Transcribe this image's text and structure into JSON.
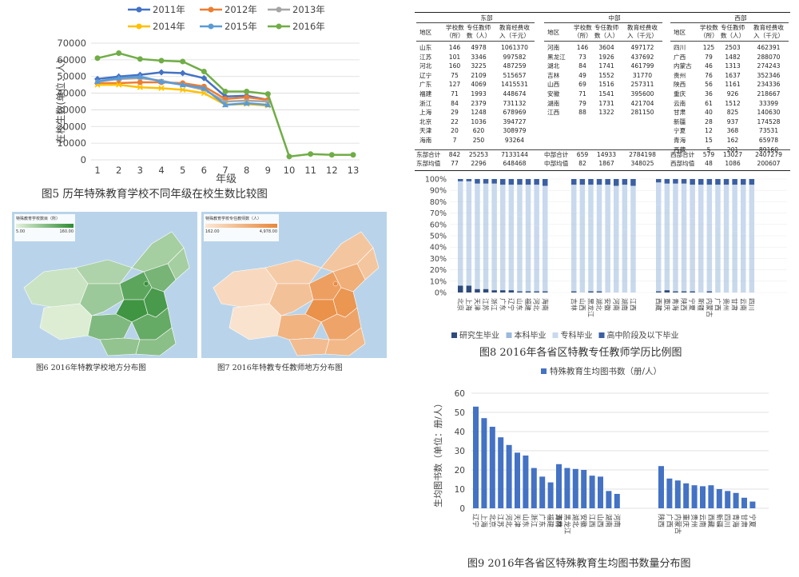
{
  "fig5": {
    "caption": "图5 历年特殊教育学校不同年级在校生数比较图",
    "ylabel": "在校生数(单位：人)",
    "xlabel": "年级",
    "chart_data": {
      "type": "line",
      "title": "",
      "xlabel": "年级",
      "ylabel": "在校生数(单位：人)",
      "ylim": [
        0,
        70000
      ],
      "yticks": [
        0,
        10000,
        20000,
        30000,
        40000,
        50000,
        60000,
        70000
      ],
      "x": [
        1,
        2,
        3,
        4,
        5,
        6,
        7,
        8,
        9,
        10,
        11,
        12,
        13
      ],
      "legend_position": "top",
      "series": [
        {
          "name": "2011年",
          "color": "#4472C4",
          "values": [
            48500,
            50000,
            51000,
            52500,
            52000,
            49000,
            38000,
            38500,
            36000,
            null,
            null,
            null,
            null
          ]
        },
        {
          "name": "2012年",
          "color": "#ED7D31",
          "values": [
            46000,
            46000,
            46500,
            46500,
            46000,
            44000,
            36500,
            37500,
            36000,
            null,
            null,
            null,
            null
          ]
        },
        {
          "name": "2013年",
          "color": "#A5A5A5",
          "values": [
            47000,
            48500,
            49000,
            47500,
            45000,
            42000,
            35000,
            35500,
            35000,
            null,
            null,
            null,
            null
          ]
        },
        {
          "name": "2014年",
          "color": "#FFC000",
          "values": [
            45000,
            45000,
            43500,
            43000,
            42000,
            40000,
            33000,
            33500,
            32500,
            null,
            null,
            null,
            null
          ]
        },
        {
          "name": "2015年",
          "color": "#5B9BD5",
          "values": [
            47000,
            49000,
            50000,
            47000,
            45000,
            43000,
            33000,
            34000,
            33000,
            null,
            null,
            null,
            null
          ]
        },
        {
          "name": "2016年",
          "color": "#70AD47",
          "values": [
            61000,
            64000,
            60500,
            59500,
            59000,
            53000,
            41000,
            41000,
            39500,
            2000,
            3500,
            3000,
            3000
          ]
        }
      ]
    }
  },
  "fig6": {
    "caption": "图6 2016年特教学校地方分布图",
    "legend_title": "特殊教育学校数目（所）",
    "legend_min": "5.00",
    "legend_max": "160.00",
    "color_low": "#e5f2dd",
    "color_high": "#2e8b32"
  },
  "fig7": {
    "caption": "图7 2016年特教专任教师地方分布图",
    "legend_title": "特殊教育学校专任教师数（人）",
    "legend_min": "162.00",
    "legend_max": "4,978.00",
    "color_low": "#fbe8d6",
    "color_high": "#e8873a"
  },
  "table": {
    "region_headers": [
      "东部",
      "中部",
      "西部"
    ],
    "col_headers": [
      "地区",
      "学校数（所）",
      "专任教师数（人）",
      "教育经费收入（千元）"
    ],
    "east": [
      [
        "山东",
        "146",
        "4978",
        "1061370"
      ],
      [
        "江苏",
        "101",
        "3346",
        "997582"
      ],
      [
        "河北",
        "160",
        "3225",
        "487259"
      ],
      [
        "辽宁",
        "75",
        "2109",
        "515657"
      ],
      [
        "广东",
        "127",
        "4069",
        "1415531"
      ],
      [
        "福建",
        "71",
        "1993",
        "448674"
      ],
      [
        "浙江",
        "84",
        "2379",
        "731132"
      ],
      [
        "上海",
        "29",
        "1248",
        "678969"
      ],
      [
        "北京",
        "22",
        "1036",
        "394727"
      ],
      [
        "天津",
        "20",
        "620",
        "308979"
      ],
      [
        "海南",
        "7",
        "250",
        "93264"
      ]
    ],
    "central": [
      [
        "河南",
        "146",
        "3604",
        "497172"
      ],
      [
        "黑龙江",
        "73",
        "1926",
        "437692"
      ],
      [
        "湖北",
        "84",
        "1741",
        "461799"
      ],
      [
        "吉林",
        "49",
        "1552",
        "31770"
      ],
      [
        "山西",
        "69",
        "1516",
        "257311"
      ],
      [
        "安徽",
        "71",
        "1541",
        "395600"
      ],
      [
        "湖南",
        "79",
        "1731",
        "421704"
      ],
      [
        "江西",
        "88",
        "1322",
        "281150"
      ]
    ],
    "west": [
      [
        "四川",
        "125",
        "2503",
        "462391"
      ],
      [
        "广西",
        "79",
        "1482",
        "288070"
      ],
      [
        "内蒙古",
        "46",
        "1313",
        "274243"
      ],
      [
        "贵州",
        "76",
        "1637",
        "352346"
      ],
      [
        "陕西",
        "56",
        "1161",
        "234336"
      ],
      [
        "重庆",
        "36",
        "926",
        "218667"
      ],
      [
        "云南",
        "61",
        "1512",
        "33399"
      ],
      [
        "甘肃",
        "40",
        "825",
        "140630"
      ],
      [
        "新疆",
        "28",
        "937",
        "174528"
      ],
      [
        "宁夏",
        "12",
        "368",
        "73531"
      ],
      [
        "青海",
        "15",
        "162",
        "65978"
      ],
      [
        "西藏",
        "5",
        "201",
        "89160"
      ]
    ],
    "totals": [
      [
        "东部合计",
        "842",
        "25253",
        "7133144",
        "中部合计",
        "659",
        "14933",
        "2784198",
        "西部合计",
        "579",
        "13027",
        "2407279"
      ],
      [
        "东部均值",
        "77",
        "2296",
        "648468",
        "中部均值",
        "82",
        "1867",
        "348025",
        "西部均值",
        "48",
        "1086",
        "200607"
      ]
    ]
  },
  "fig8": {
    "caption": "图8 2016年各省区特教专任教师学历比例图",
    "chart_data": {
      "type": "bar",
      "stacked": true,
      "percent": true,
      "ylim": [
        0,
        100
      ],
      "yticks": [
        "0%",
        "10%",
        "20%",
        "30%",
        "40%",
        "50%",
        "60%",
        "70%",
        "80%",
        "90%",
        "100%"
      ],
      "categories": [
        "北京",
        "上海",
        "天津",
        "江苏",
        "浙江",
        "广东",
        "辽宁",
        "山东",
        "福建",
        "河北",
        "海南",
        "吉林",
        "山西",
        "黑龙江",
        "湖北",
        "安徽",
        "河南",
        "湖南",
        "江西",
        "西藏",
        "重庆",
        "青海",
        "陕西",
        "宁夏",
        "新疆",
        "内蒙古",
        "广西",
        "贵州",
        "甘肃",
        "云南",
        "四川"
      ],
      "legend_position": "bottom",
      "series": [
        {
          "name": "研究生毕业",
          "color": "#2f4b7c",
          "values": [
            6,
            6,
            3,
            3,
            2,
            2,
            2,
            1,
            1,
            1,
            1,
            1,
            0,
            1,
            1,
            0,
            0,
            0,
            0,
            1,
            2,
            1,
            1,
            1,
            0,
            1,
            0,
            0,
            0,
            0,
            0
          ]
        },
        {
          "name": "本科毕业",
          "color": "#9cb9dc",
          "values": [
            82,
            82,
            77,
            72,
            68,
            67,
            66,
            66,
            62,
            58,
            45,
            70,
            68,
            64,
            62,
            60,
            56,
            55,
            52,
            76,
            72,
            70,
            68,
            64,
            62,
            60,
            58,
            56,
            54,
            52,
            50
          ]
        },
        {
          "name": "专科毕业",
          "color": "#c9d9ee",
          "values": [
            10,
            10,
            16,
            21,
            26,
            26,
            27,
            28,
            32,
            36,
            48,
            24,
            27,
            30,
            32,
            35,
            38,
            40,
            42,
            20,
            22,
            25,
            27,
            30,
            33,
            34,
            37,
            39,
            41,
            43,
            45
          ]
        },
        {
          "name": "高中阶段及以下毕业",
          "color": "#3b5fa1",
          "values": [
            2,
            2,
            4,
            4,
            4,
            5,
            5,
            5,
            5,
            5,
            6,
            5,
            5,
            5,
            5,
            5,
            6,
            5,
            6,
            3,
            4,
            4,
            4,
            5,
            5,
            5,
            5,
            5,
            5,
            5,
            5
          ]
        }
      ]
    }
  },
  "fig9": {
    "caption": "图9 2016年各省区特殊教育生均图书数量分布图",
    "legend_label": "特殊教育生均图书数（册/人）",
    "ylabel": "生均图书数（单位：册/人）",
    "chart_data": {
      "type": "bar",
      "ylim": [
        0,
        60
      ],
      "yticks": [
        0,
        10,
        20,
        30,
        40,
        50,
        60
      ],
      "categories": [
        "辽宁",
        "上海",
        "北京",
        "江苏",
        "河北",
        "天津",
        "山东",
        "浙江",
        "广东",
        "福建",
        "海南",
        "吉林",
        "黑龙江",
        "湖北",
        "安徽",
        "江西",
        "山西",
        "湖南",
        "河南",
        "陕西",
        "广西",
        "内蒙古",
        "重庆",
        "贵州",
        "云南",
        "西藏",
        "新疆",
        "四川",
        "青海",
        "甘肃",
        "宁夏"
      ],
      "series": [
        {
          "name": "特殊教育生均图书数（册/人）",
          "color": "#4472C4",
          "values": [
            53,
            47,
            42.5,
            37,
            33,
            29,
            27.5,
            21,
            16.5,
            13.5,
            15.5,
            23,
            21,
            20.5,
            20,
            17,
            16.5,
            9,
            7.5,
            22,
            15.5,
            14.5,
            13,
            12,
            11.5,
            12,
            10,
            9,
            8,
            5.5,
            3.5
          ]
        }
      ]
    }
  }
}
